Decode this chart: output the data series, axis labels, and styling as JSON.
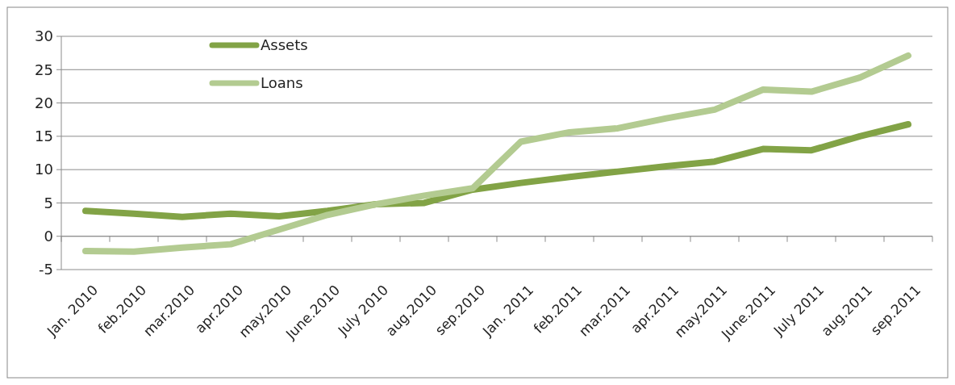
{
  "chart_data": {
    "type": "line",
    "categories": [
      "Jan. 2010",
      "feb.2010",
      "mar.2010",
      "apr.2010",
      "may.2010",
      "June.2010",
      "July 2010",
      "aug.2010",
      "sep.2010",
      "Jan. 2011",
      "feb.2011",
      "mar.2011",
      "apr.2011",
      "may.2011",
      "June.2011",
      "July 2011",
      "aug.2011",
      "sep.2011"
    ],
    "series": [
      {
        "name": "Assets",
        "color": "#82a346",
        "values": [
          3.8,
          3.4,
          2.9,
          3.4,
          3.0,
          3.8,
          4.8,
          5.0,
          7.0,
          8.0,
          8.9,
          9.7,
          10.5,
          11.2,
          13.1,
          12.9,
          15.0,
          16.8
        ]
      },
      {
        "name": "Loans",
        "color": "#b3cb91",
        "values": [
          -2.2,
          -2.3,
          -1.7,
          -1.2,
          1.0,
          3.2,
          4.8,
          6.1,
          7.2,
          14.2,
          15.6,
          16.2,
          17.7,
          19.0,
          22.0,
          21.7,
          23.8,
          27.1
        ]
      }
    ],
    "ylim": [
      -5,
      30
    ],
    "yticks": [
      -5,
      0,
      5,
      10,
      15,
      20,
      25,
      30
    ],
    "grid": "y",
    "legend": "top left",
    "marker": "none",
    "line_style": "solid"
  }
}
